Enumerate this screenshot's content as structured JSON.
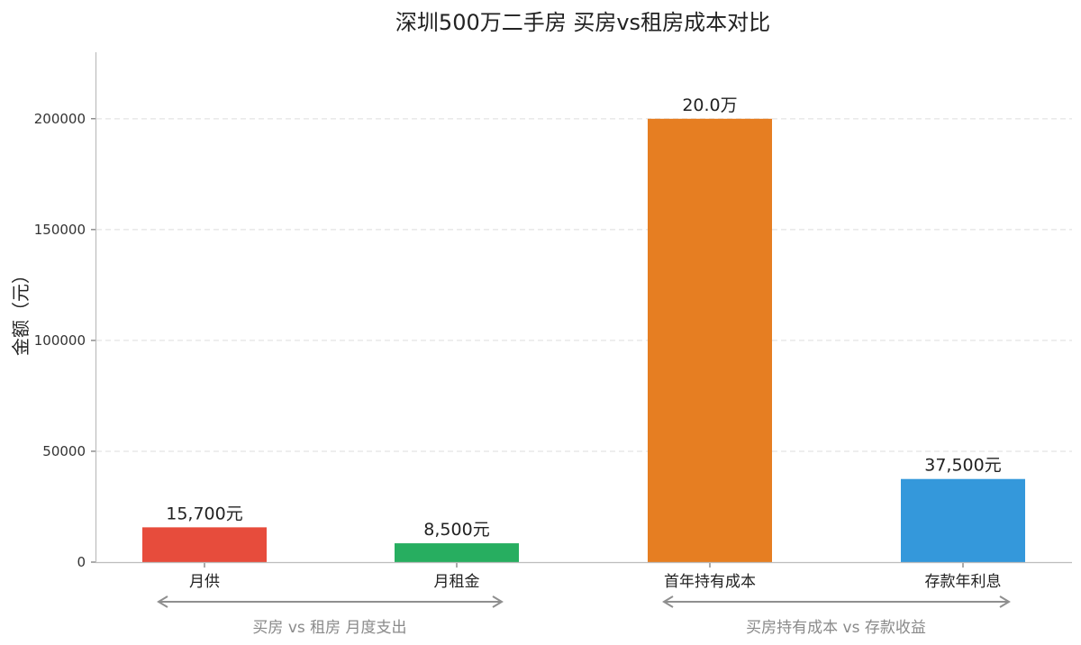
{
  "chart_data": {
    "type": "bar",
    "title": "深圳500万二手房 买房vs租房成本对比",
    "ylabel": "金额（元）",
    "xlabel": "",
    "ylim": [
      0,
      230000
    ],
    "yticks": [
      0,
      50000,
      100000,
      150000,
      200000
    ],
    "ytick_labels": [
      "0",
      "50000",
      "100000",
      "150000",
      "200000"
    ],
    "grid": true,
    "categories": [
      "月供",
      "月租金",
      "首年持有成本",
      "存款年利息"
    ],
    "values": [
      15700,
      8500,
      200000,
      37500
    ],
    "data_labels": [
      "15,700元",
      "8,500元",
      "20.0万",
      "37,500元"
    ],
    "colors": [
      "#e74c3c",
      "#27ae60",
      "#e67e22",
      "#3498db"
    ],
    "groups": [
      {
        "label": "买房 vs 租房 月度支出"
      },
      {
        "label": "买房持有成本 vs 存款收益"
      }
    ]
  }
}
